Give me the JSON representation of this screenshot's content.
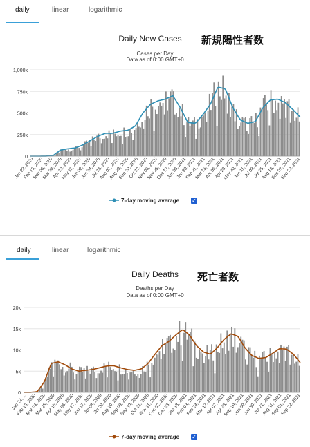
{
  "tabs": [
    "daily",
    "linear",
    "logarithmic"
  ],
  "charts": [
    {
      "title": "Daily New Cases",
      "jp_title": "新規陽性者数",
      "subtitle1": "Cases per Day",
      "subtitle2": "Data as of 0:00 GMT+0",
      "legend": "7-day moving average",
      "colors": {
        "bar": "#8c8c8c",
        "line": "#2e8fb5"
      },
      "chart_data": {
        "type": "bar",
        "title": "Daily New Cases",
        "ylabel": "Cases per Day",
        "ylim": [
          0,
          1000000
        ],
        "yticks": [
          0,
          250000,
          500000,
          750000,
          1000000
        ],
        "ytick_labels": [
          "0",
          "250k",
          "500k",
          "750k",
          "1,000k"
        ],
        "x_tick_labels": [
          "Jan 22, 2020",
          "Feb 13, 2020",
          "Mar 06, 2020",
          "Mar 28, 2020",
          "Apr 19, 2020",
          "May 11, 2020",
          "Jun 02, 2020",
          "Jun 24, 2020",
          "Jul 16, 2020",
          "Aug 07, 2020",
          "Aug 29, 2020",
          "Sep 20, 2020",
          "Oct 12, 2020",
          "Nov 03, 2020",
          "Nov 25, 2020",
          "Dec 17, 2020",
          "Jan 08, 2021",
          "Jan 30, 2021",
          "Feb 21, 2021",
          "Mar 15, 2021",
          "Apr 06, 2021",
          "Apr 28, 2021",
          "May 20, 2021",
          "Jun 11, 2021",
          "Jul 03, 2021",
          "Jul 25, 2021",
          "Aug 16, 2021",
          "Sep 07, 2021",
          "Sep 29, 2021"
        ],
        "moving_average_series": {
          "name": "7-day moving average",
          "values": [
            0,
            0,
            1000,
            5000,
            70000,
            85000,
            95000,
            130000,
            180000,
            230000,
            265000,
            265000,
            290000,
            300000,
            350000,
            500000,
            600000,
            640000,
            660000,
            700000,
            560000,
            390000,
            380000,
            480000,
            600000,
            800000,
            780000,
            560000,
            420000,
            380000,
            400000,
            560000,
            650000,
            660000,
            620000,
            540000,
            450000
          ]
        }
      }
    },
    {
      "title": "Daily Deaths",
      "jp_title": "死亡者数",
      "subtitle1": "Deaths per Day",
      "subtitle2": "Data as of 0:00 GMT+0",
      "legend": "7-day moving average",
      "colors": {
        "bar": "#8c8c8c",
        "line": "#a14a0a"
      },
      "chart_data": {
        "type": "bar",
        "title": "Daily Deaths",
        "ylabel": "Deaths per Day",
        "ylim": [
          0,
          20000
        ],
        "yticks": [
          0,
          5000,
          10000,
          15000,
          20000
        ],
        "ytick_labels": [
          "0",
          "5k",
          "10k",
          "15k",
          "20k"
        ],
        "x_tick_labels": [
          "Jan 22, ...",
          "Feb 13, 2020",
          "Mar 04, 2020",
          "Mar 25, 2020",
          "Apr 15, 2020",
          "May 06, 2020",
          "May 27, 2020",
          "Jun 17, 2020",
          "Jul 08, 2020",
          "Jul 29, 2020",
          "Aug 19, 2020",
          "Sep 09, 2020",
          "Sep 30, 2020",
          "Oct 21, 2020",
          "Nov 11, 2020",
          "Dec 02, 2020",
          "Dec 23, 2020",
          "Jan 13, 2021",
          "Feb 03, 2021",
          "Feb 24, 2021",
          "Mar 17, 2021",
          "Apr 07, 2021",
          "Apr 28, 2021",
          "May 19, 2021",
          "Jun 09, 2021",
          "Jun 30, 2021",
          "Jul 21, 2021",
          "Aug 11, 2021",
          "Sep 01, 2021",
          "Sep 22, 2021"
        ],
        "moving_average_series": {
          "name": "7-day moving average",
          "values": [
            0,
            0,
            200,
            2500,
            6800,
            7200,
            6500,
            5500,
            5000,
            5200,
            5400,
            5800,
            6200,
            6300,
            5800,
            5400,
            5200,
            5500,
            6800,
            9000,
            11000,
            12000,
            13500,
            14800,
            13500,
            11000,
            9500,
            9000,
            10500,
            12500,
            13800,
            13200,
            10500,
            8700,
            8000,
            8200,
            9200,
            10300,
            10200,
            9000,
            7000
          ]
        }
      }
    }
  ]
}
